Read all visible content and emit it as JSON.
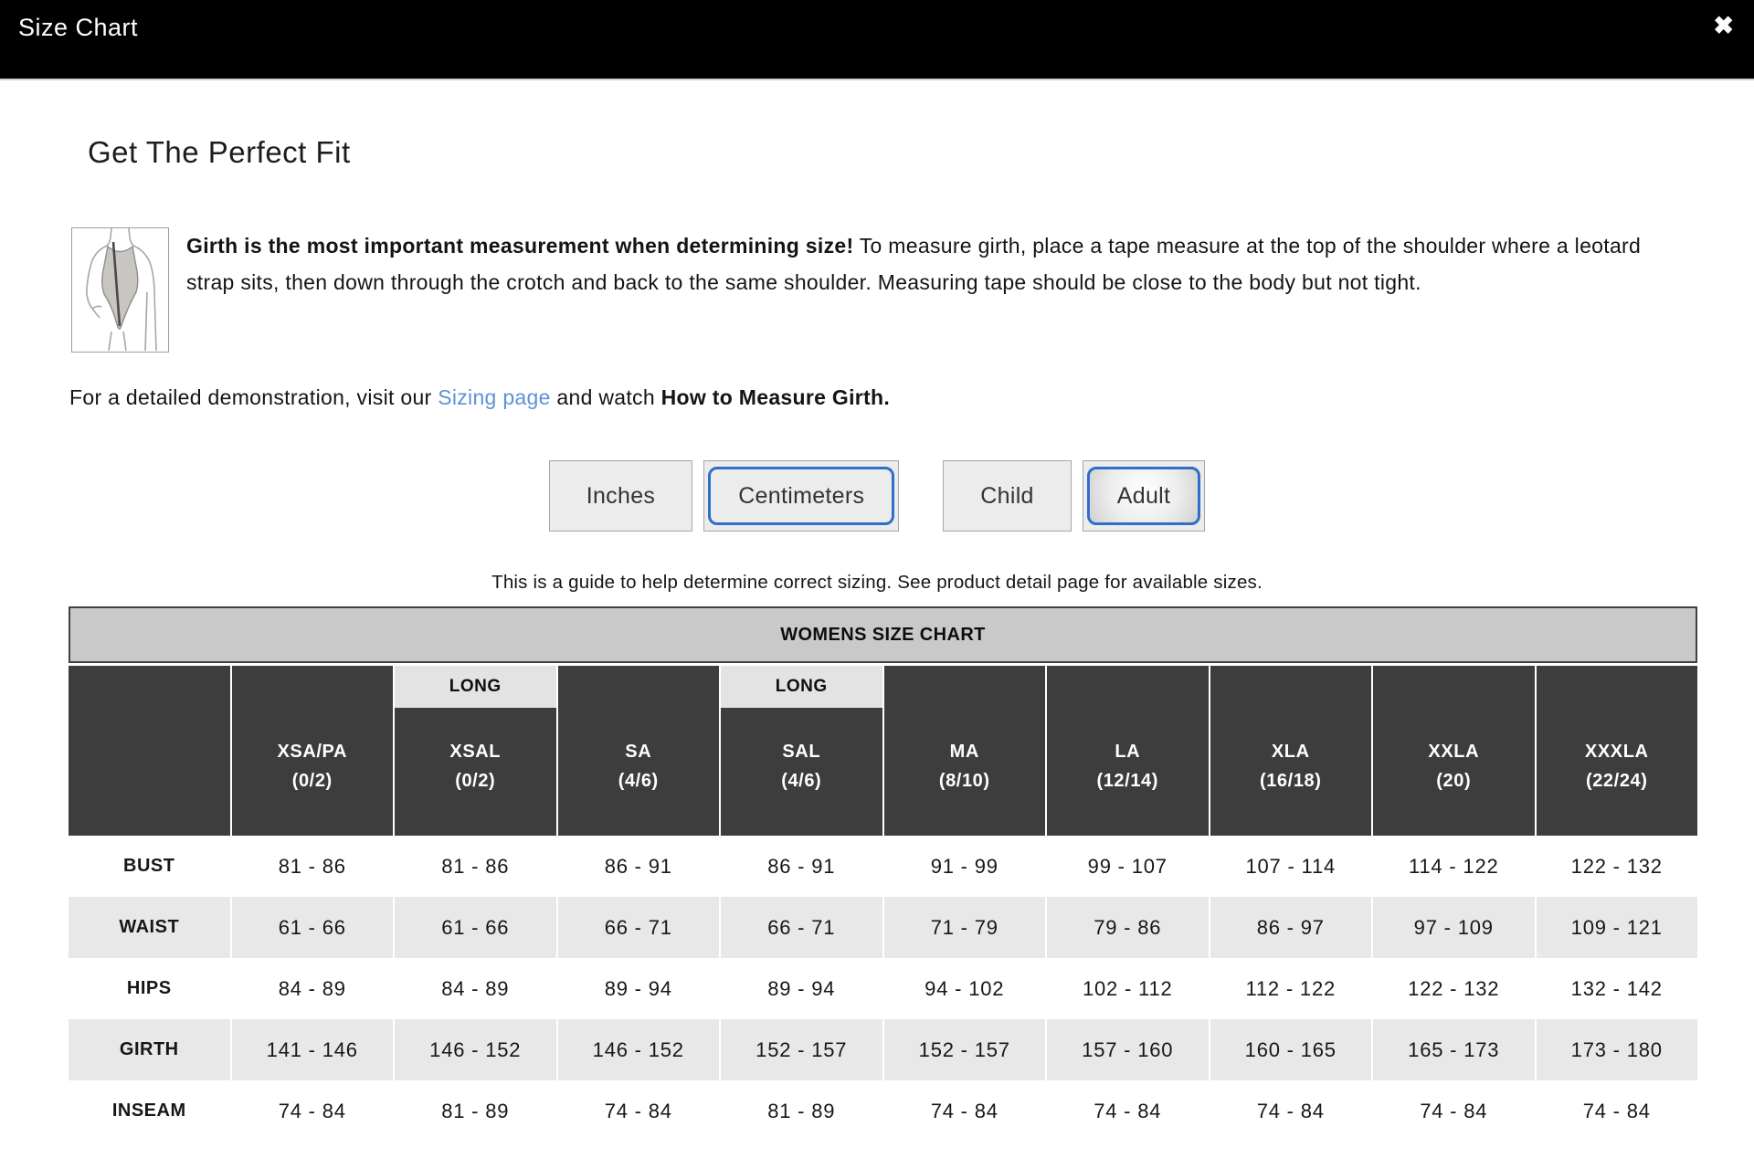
{
  "modal": {
    "title": "Size Chart",
    "close_glyph": "✖"
  },
  "heading": "Get The Perfect Fit",
  "intro": {
    "bold": "Girth is the most important measurement when determining size!",
    "rest": " To measure girth, place a tape measure at the top of the shoulder where a leotard strap sits, then down through the crotch and back to the same shoulder. Measuring tape should be close to the body but not tight."
  },
  "demo": {
    "prefix": "For a detailed demonstration, visit our ",
    "link_text": "Sizing page",
    "middle": " and watch ",
    "bold": "How to Measure Girth."
  },
  "toggles": {
    "unit": [
      {
        "label": "Inches",
        "selected": false
      },
      {
        "label": "Centimeters",
        "selected": true
      }
    ],
    "age": [
      {
        "label": "Child",
        "selected": false
      },
      {
        "label": "Adult",
        "selected": true
      }
    ]
  },
  "note": "This is a guide to help determine correct sizing. See product detail page for available sizes.",
  "table": {
    "title": "WOMENS SIZE CHART",
    "long_label": "LONG",
    "columns": [
      {
        "name": "XSA/PA",
        "sub": "(0/2)",
        "long": false
      },
      {
        "name": "XSAL",
        "sub": "(0/2)",
        "long": true
      },
      {
        "name": "SA",
        "sub": "(4/6)",
        "long": false
      },
      {
        "name": "SAL",
        "sub": "(4/6)",
        "long": true
      },
      {
        "name": "MA",
        "sub": "(8/10)",
        "long": false
      },
      {
        "name": "LA",
        "sub": "(12/14)",
        "long": false
      },
      {
        "name": "XLA",
        "sub": "(16/18)",
        "long": false
      },
      {
        "name": "XXLA",
        "sub": "(20)",
        "long": false
      },
      {
        "name": "XXXLA",
        "sub": "(22/24)",
        "long": false
      }
    ],
    "rows": [
      {
        "label": "BUST",
        "values": [
          "81 - 86",
          "81 - 86",
          "86 - 91",
          "86 - 91",
          "91 - 99",
          "99 - 107",
          "107 - 114",
          "114 - 122",
          "122 - 132"
        ]
      },
      {
        "label": "WAIST",
        "values": [
          "61 - 66",
          "61 - 66",
          "66 - 71",
          "66 - 71",
          "71 - 79",
          "79 - 86",
          "86 - 97",
          "97 - 109",
          "109 - 121"
        ]
      },
      {
        "label": "HIPS",
        "values": [
          "84 - 89",
          "84 - 89",
          "89 - 94",
          "89 - 94",
          "94 - 102",
          "102 - 112",
          "112 - 122",
          "122 - 132",
          "132 - 142"
        ]
      },
      {
        "label": "GIRTH",
        "values": [
          "141 - 146",
          "146 - 152",
          "146 - 152",
          "152 - 157",
          "152 - 157",
          "157 - 160",
          "160 - 165",
          "165 - 173",
          "173 - 180"
        ]
      },
      {
        "label": "INSEAM",
        "values": [
          "74 - 84",
          "81 - 89",
          "74 - 84",
          "81 - 89",
          "74 - 84",
          "74 - 84",
          "74 - 84",
          "74 - 84",
          "74 - 84"
        ]
      }
    ]
  },
  "colors": {
    "accent_blue": "#2f6ecb",
    "link_blue": "#5b93d8",
    "header_dark": "#3d3d3d",
    "title_gray": "#c9c9c9",
    "row_alt_gray": "#e8e8e8"
  }
}
